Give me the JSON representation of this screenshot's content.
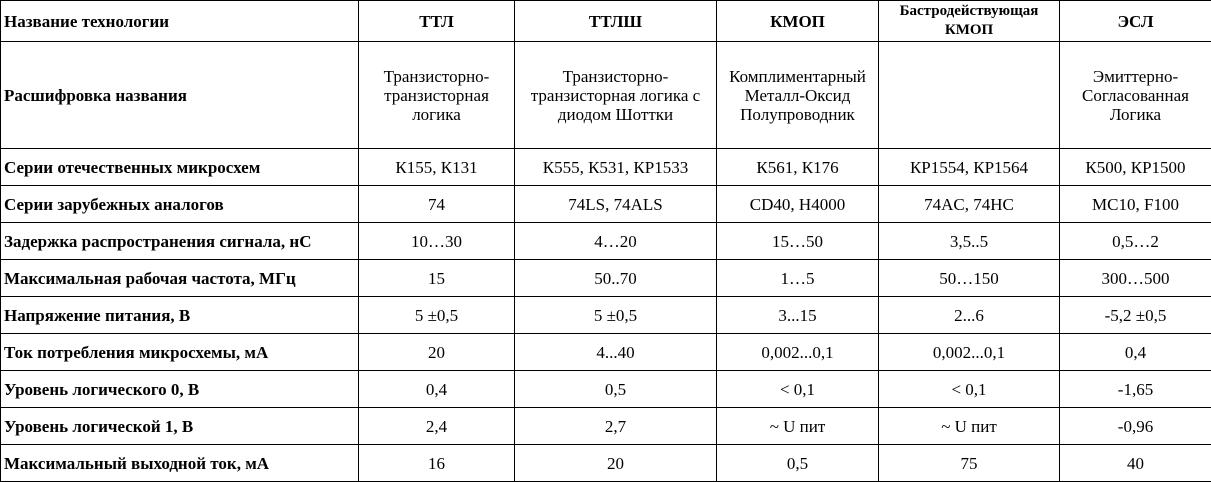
{
  "header": {
    "label": "Название технологии",
    "columns": [
      "ТТЛ",
      "ТТЛШ",
      "КМОП",
      "Бастродействующая КМОП",
      "ЭСЛ"
    ]
  },
  "rows": [
    {
      "label": "Расшифровка названия",
      "values": [
        "Транзисторно-транзисторная логика",
        "Транзисторно-транзисторная логика с диодом Шоттки",
        "Комплиментарный Металл-Оксид Полупроводник",
        "",
        "Эмиттерно-Согласованная Логика"
      ]
    },
    {
      "label": "Серии отечественных микросхем",
      "values": [
        "К155, К131",
        "К555, К531, КР1533",
        "К561, К176",
        "КР1554, КР1564",
        "К500, КР1500"
      ]
    },
    {
      "label": "Серии зарубежных аналогов",
      "values": [
        "74",
        "74LS, 74ALS",
        "CD40, H4000",
        "74AC, 74HC",
        "MC10, F100"
      ]
    },
    {
      "label": "Задержка распространения сигнала, нС",
      "values": [
        "10…30",
        "4…20",
        "15…50",
        "3,5..5",
        "0,5…2"
      ]
    },
    {
      "label": "Максимальная рабочая частота, МГц",
      "values": [
        "15",
        "50..70",
        "1…5",
        "50…150",
        "300…500"
      ]
    },
    {
      "label": "Напряжение питания, В",
      "values": [
        "5 ±0,5",
        "5 ±0,5",
        "3...15",
        "2...6",
        "-5,2 ±0,5"
      ]
    },
    {
      "label": "Ток потребления микросхемы, мА",
      "values": [
        "20",
        "4...40",
        "0,002...0,1",
        "0,002...0,1",
        "0,4"
      ]
    },
    {
      "label": "Уровень логического 0, В",
      "values": [
        "0,4",
        "0,5",
        "< 0,1",
        "< 0,1",
        "-1,65"
      ]
    },
    {
      "label": "Уровень логической 1, В",
      "values": [
        "2,4",
        "2,7",
        "~ U пит",
        "~ U пит",
        "-0,96"
      ]
    },
    {
      "label": "Максимальный выходной ток, мА",
      "values": [
        "16",
        "20",
        "0,5",
        "75",
        "40"
      ]
    }
  ]
}
